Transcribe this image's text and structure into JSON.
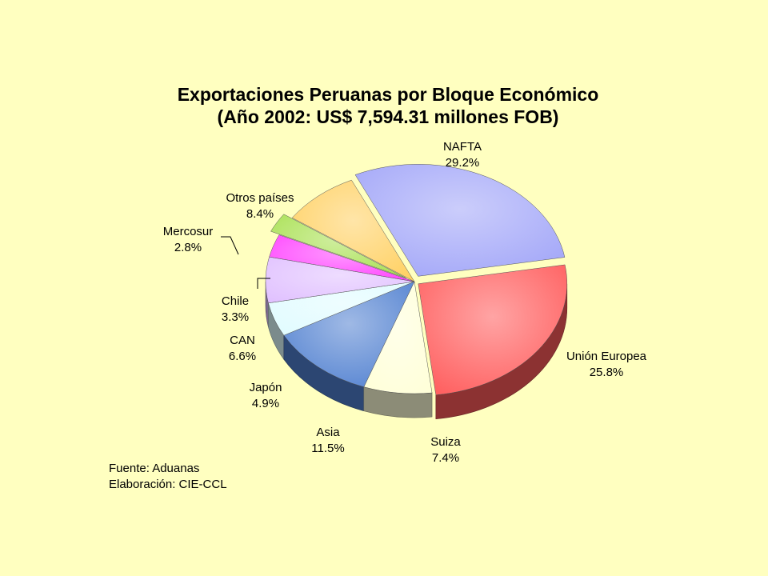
{
  "chart_data": {
    "type": "pie",
    "title": "Exportaciones Peruanas por Bloque Económico",
    "subtitle": "(Año 2002: US$ 7,594.31 millones FOB)",
    "slices": [
      {
        "label": "NAFTA",
        "value_label": "29.2%",
        "value": 29.2,
        "color": "#A0A4F8"
      },
      {
        "label": "Unión Europea",
        "value_label": "25.8%",
        "value": 25.8,
        "color": "#FF5A5A"
      },
      {
        "label": "Suiza",
        "value_label": "7.4%",
        "value": 7.4,
        "color": "#FFFFD8"
      },
      {
        "label": "Asia",
        "value_label": "11.5%",
        "value": 11.5,
        "color": "#5080D0"
      },
      {
        "label": "Japón",
        "value_label": "4.9%",
        "value": 4.9,
        "color": "#E0FCFF"
      },
      {
        "label": "CAN",
        "value_label": "6.6%",
        "value": 6.6,
        "color": "#E0C0FF"
      },
      {
        "label": "Chile",
        "value_label": "3.3%",
        "value": 3.3,
        "color": "#FF40FF"
      },
      {
        "label": "Mercosur",
        "value_label": "2.8%",
        "value": 2.8,
        "color": "#A8E050"
      },
      {
        "label": "Otros países",
        "value_label": "8.4%",
        "value": 8.4,
        "color": "#FFD060"
      }
    ]
  },
  "source": {
    "line1": "Fuente: Aduanas",
    "line2": "Elaboración: CIE-CCL"
  }
}
